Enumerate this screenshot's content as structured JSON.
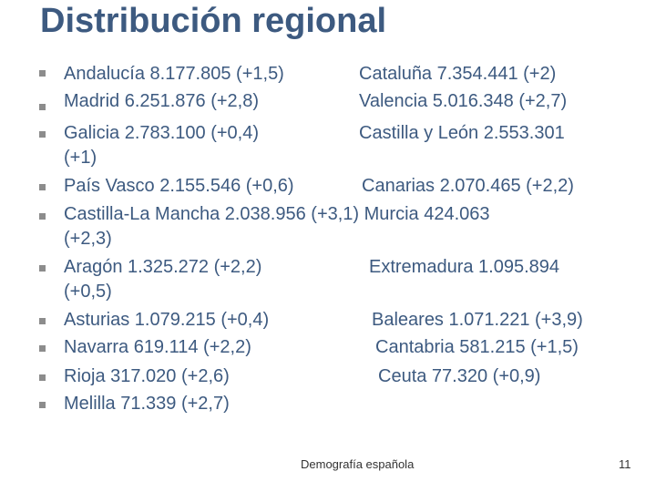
{
  "slide": {
    "title": "Distribución regional",
    "items": [
      {
        "left": "Andalucía 8.177.805 (+1,5)",
        "right": "Cataluña 7.354.441 (+2)"
      },
      {
        "left": "Madrid 6.251.876 (+2,8)",
        "right": "Valencia 5.016.348 (+2,7)"
      },
      {
        "left": "Galicia 2.783.100 (+0,4)",
        "right": "Castilla y León 2.553.301",
        "wrap": "(+1)"
      },
      {
        "left": "País Vasco 2.155.546 (+0,6)",
        "right": "Canarias 2.070.465 (+2,2)"
      },
      {
        "left": "Castilla-La Mancha 2.038.956 (+3,1) Murcia 424.063",
        "right": "",
        "wrap": "(+2,3)"
      },
      {
        "left": "Aragón 1.325.272 (+2,2)",
        "right": "Extremadura 1.095.894",
        "wrap": "(+0,5)"
      },
      {
        "left": "Asturias 1.079.215 (+0,4)",
        "right": "Baleares  1.071.221 (+3,9)"
      },
      {
        "left": "Navarra 619.114 (+2,2)",
        "right": "Cantabria 581.215 (+1,5)"
      },
      {
        "left": "Rioja 317.020 (+2,6)",
        "right": "Ceuta 77.320 (+0,9)"
      },
      {
        "left": "Melilla 71.339 (+2,7)",
        "right": ""
      }
    ],
    "footer": "Demografía española",
    "page_number": "11",
    "colors": {
      "text": "#3d5a80",
      "bullet": "#8c8c8c"
    }
  }
}
